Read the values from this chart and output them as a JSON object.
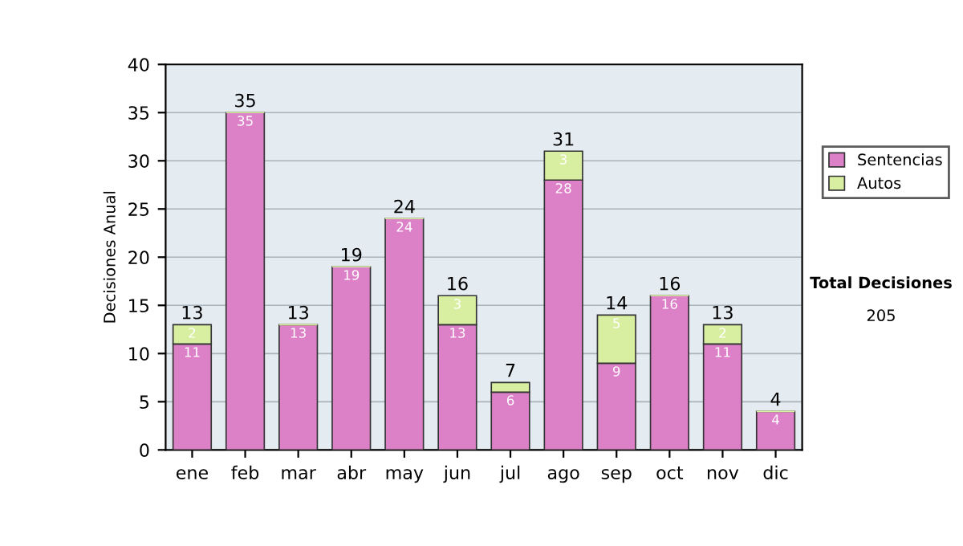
{
  "chart_data": {
    "type": "bar",
    "stacked": true,
    "ylabel": "Decisiones Anual",
    "categories": [
      "ene",
      "feb",
      "mar",
      "abr",
      "may",
      "jun",
      "jul",
      "ago",
      "sep",
      "oct",
      "nov",
      "dic"
    ],
    "series": [
      {
        "name": "Sentencias",
        "color": "#dc80c8",
        "values": [
          11,
          35,
          13,
          19,
          24,
          13,
          6,
          28,
          9,
          16,
          11,
          4
        ],
        "value_labels": [
          "11",
          "35",
          "13",
          "19",
          "24",
          "13",
          "6",
          "28",
          "9",
          "16",
          "11",
          "4"
        ]
      },
      {
        "name": "Autos",
        "color": "#d8eea0",
        "values": [
          2,
          0,
          0,
          0,
          0,
          3,
          1,
          3,
          5,
          0,
          2,
          0
        ],
        "value_labels": [
          "2",
          null,
          null,
          null,
          null,
          "3",
          null,
          "3",
          "5",
          null,
          "2",
          null
        ]
      }
    ],
    "totals": [
      "13",
      "35",
      "13",
      "19",
      "24",
      "16",
      "7",
      "31",
      "14",
      "16",
      "13",
      "4"
    ],
    "ylim": [
      0,
      40
    ],
    "yticks": [
      0,
      5,
      10,
      15,
      20,
      25,
      30,
      35,
      40
    ],
    "grid": "y",
    "legend": "right",
    "annotations": [
      "Total Decisiones",
      "205"
    ]
  }
}
